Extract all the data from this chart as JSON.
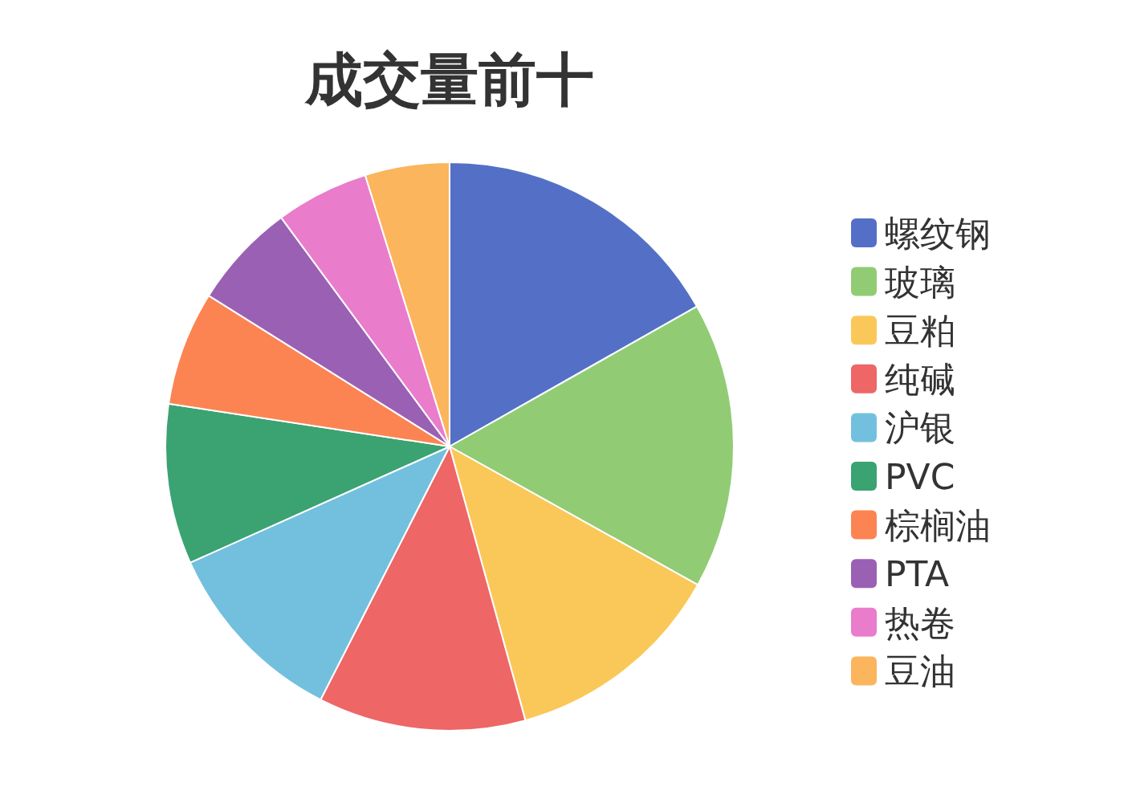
{
  "chart_data": {
    "type": "pie",
    "title": "成交量前十",
    "categories": [
      "螺纹钢",
      "玻璃",
      "豆粕",
      "纯碱",
      "沪银",
      "PVC",
      "棕榈油",
      "PTA",
      "热卷",
      "豆油"
    ],
    "values": [
      16.8,
      16.3,
      12.6,
      11.8,
      10.8,
      9.1,
      6.5,
      6.0,
      5.3,
      4.8
    ],
    "colors": [
      "#5470c6",
      "#91cc75",
      "#fac858",
      "#ee6666",
      "#73c0de",
      "#3ba272",
      "#fc8452",
      "#9a60b4",
      "#ea7ccc",
      "#fbb55c"
    ],
    "legend": "right"
  }
}
